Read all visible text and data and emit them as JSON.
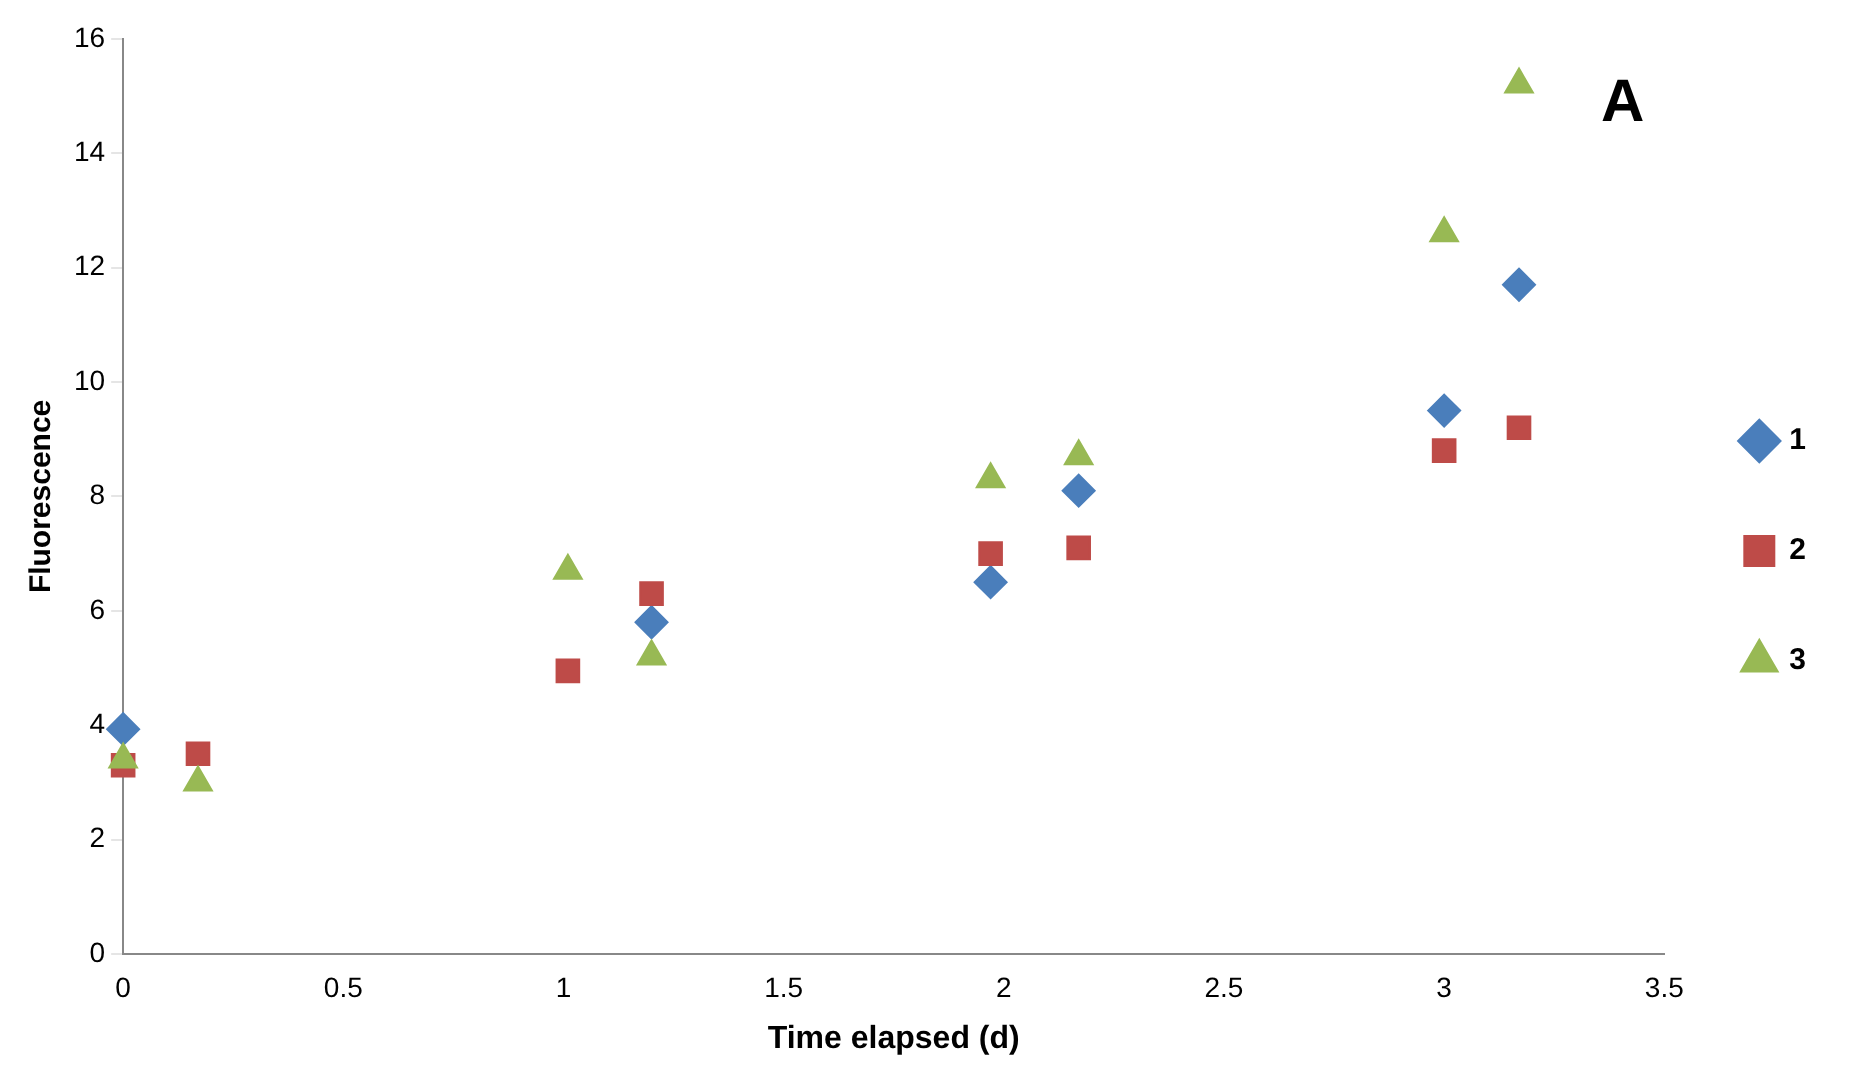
{
  "chart_data": {
    "type": "scatter",
    "xlabel": "Time elapsed (d)",
    "ylabel": "Fluorescence",
    "xlim": [
      0,
      3.5
    ],
    "xticks": [
      0,
      0.5,
      1,
      1.5,
      2,
      2.5,
      3,
      3.5
    ],
    "ylim": [
      0,
      16
    ],
    "yticks": [
      0,
      2,
      4,
      6,
      8,
      10,
      12,
      14,
      16
    ],
    "grid": false,
    "legend": "right",
    "annotations": [
      "A"
    ],
    "series": [
      {
        "name": "1",
        "color": "#4a7ebb",
        "marker": "diamond",
        "x": [
          0,
          1.2,
          1.97,
          2.17,
          3.0,
          3.17
        ],
        "values": [
          3.93,
          5.8,
          6.5,
          8.1,
          9.5,
          11.7
        ]
      },
      {
        "name": "2",
        "color": "#be4b48",
        "marker": "square",
        "x": [
          0,
          0.17,
          1.01,
          1.2,
          1.97,
          2.17,
          3.0,
          3.17
        ],
        "values": [
          3.3,
          3.5,
          4.95,
          6.3,
          7.0,
          7.1,
          8.8,
          9.2
        ]
      },
      {
        "name": "3",
        "color": "#98b954",
        "marker": "triangle",
        "x": [
          0,
          0.17,
          1.01,
          1.2,
          1.97,
          2.17,
          3.0,
          3.17
        ],
        "values": [
          3.4,
          3.0,
          6.7,
          5.2,
          8.3,
          8.7,
          12.6,
          15.2
        ]
      }
    ]
  }
}
